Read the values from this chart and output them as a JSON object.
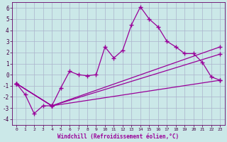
{
  "xlabel": "Windchill (Refroidissement éolien,°C)",
  "xlim": [
    -0.5,
    23.5
  ],
  "ylim": [
    -4.5,
    6.5
  ],
  "yticks": [
    -4,
    -3,
    -2,
    -1,
    0,
    1,
    2,
    3,
    4,
    5,
    6
  ],
  "xticks": [
    0,
    1,
    2,
    3,
    4,
    5,
    6,
    7,
    8,
    9,
    10,
    11,
    12,
    13,
    14,
    15,
    16,
    17,
    18,
    19,
    20,
    21,
    22,
    23
  ],
  "bg_color": "#cbe8e8",
  "grid_color": "#aab4cc",
  "line_color": "#990099",
  "series1_x": [
    0,
    1,
    2,
    3,
    4,
    5,
    6,
    7,
    8,
    9,
    10,
    11,
    12,
    13,
    14,
    15,
    16,
    17,
    18,
    19,
    20,
    21,
    22,
    23
  ],
  "series1_y": [
    -0.8,
    -1.8,
    -3.5,
    -2.8,
    -2.8,
    -1.2,
    0.3,
    0.0,
    -0.1,
    0.0,
    2.5,
    1.5,
    2.2,
    4.5,
    6.1,
    5.0,
    4.3,
    3.0,
    2.5,
    1.9,
    1.9,
    1.1,
    -0.2,
    -0.5
  ],
  "series2_x": [
    0,
    4,
    23
  ],
  "series2_y": [
    -0.8,
    -2.8,
    -0.5
  ],
  "series3_x": [
    0,
    4,
    23
  ],
  "series3_y": [
    -0.8,
    -2.8,
    1.85
  ],
  "series4_x": [
    0,
    4,
    23
  ],
  "series4_y": [
    -0.8,
    -2.8,
    2.5
  ]
}
